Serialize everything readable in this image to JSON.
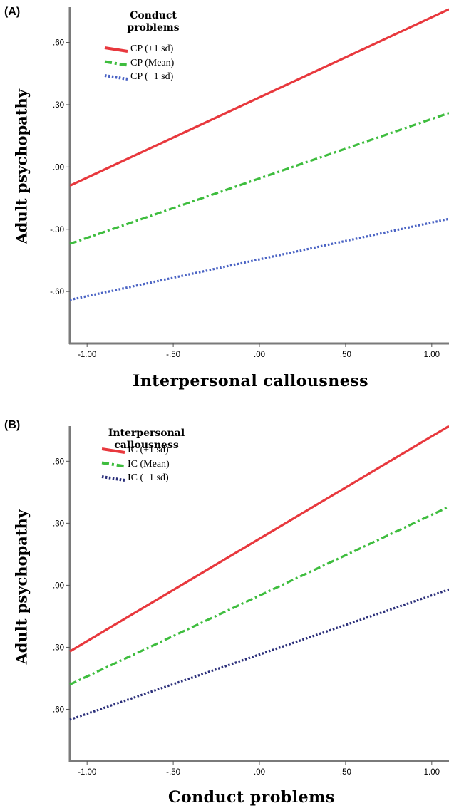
{
  "chart_data": [
    {
      "panel": "(A)",
      "type": "line",
      "xlabel": "Interpersonal callousness",
      "ylabel": "Adult psychopathy",
      "legend_title": "Conduct problems",
      "legend_position": "top-left",
      "xlim": [
        -1.1,
        1.1
      ],
      "ylim": [
        -0.85,
        0.77
      ],
      "x_ticks": [
        "-1.00",
        "-.50",
        ".00",
        ".50",
        "1.00"
      ],
      "y_ticks": [
        ".60",
        ".30",
        ".00",
        "-.30",
        "-.60"
      ],
      "grid": false,
      "series": [
        {
          "name": "CP (+1 sd)",
          "color": "#e8383d",
          "dash": "solid",
          "x": [
            -1.1,
            1.1
          ],
          "y": [
            -0.09,
            0.76
          ]
        },
        {
          "name": "CP (Mean)",
          "color": "#3ebd3e",
          "dash": "dashdot",
          "x": [
            -1.1,
            1.1
          ],
          "y": [
            -0.37,
            0.26
          ]
        },
        {
          "name": "CP (−1 sd)",
          "color": "#4a63c4",
          "dash": "dotted",
          "x": [
            -1.1,
            1.1
          ],
          "y": [
            -0.64,
            -0.25
          ]
        }
      ]
    },
    {
      "panel": "(B)",
      "type": "line",
      "xlabel": "Conduct problems",
      "ylabel": "Adult psychopathy",
      "legend_title": "Interpersonal callousness",
      "legend_position": "top-left",
      "xlim": [
        -1.1,
        1.1
      ],
      "ylim": [
        -0.85,
        0.77
      ],
      "x_ticks": [
        "-1.00",
        "-.50",
        ".00",
        ".50",
        "1.00"
      ],
      "y_ticks": [
        ".60",
        ".30",
        ".00",
        "-.30",
        "-.60"
      ],
      "grid": false,
      "series": [
        {
          "name": "IC (+1 sd)",
          "color": "#e8383d",
          "dash": "solid",
          "x": [
            -1.1,
            1.1
          ],
          "y": [
            -0.32,
            0.77
          ]
        },
        {
          "name": "IC (Mean)",
          "color": "#3ebd3e",
          "dash": "dashdot",
          "x": [
            -1.1,
            1.1
          ],
          "y": [
            -0.48,
            0.38
          ]
        },
        {
          "name": "IC (−1 sd)",
          "color": "#2b2f7a",
          "dash": "dotted",
          "x": [
            -1.1,
            1.1
          ],
          "y": [
            -0.65,
            -0.02
          ]
        }
      ]
    }
  ]
}
